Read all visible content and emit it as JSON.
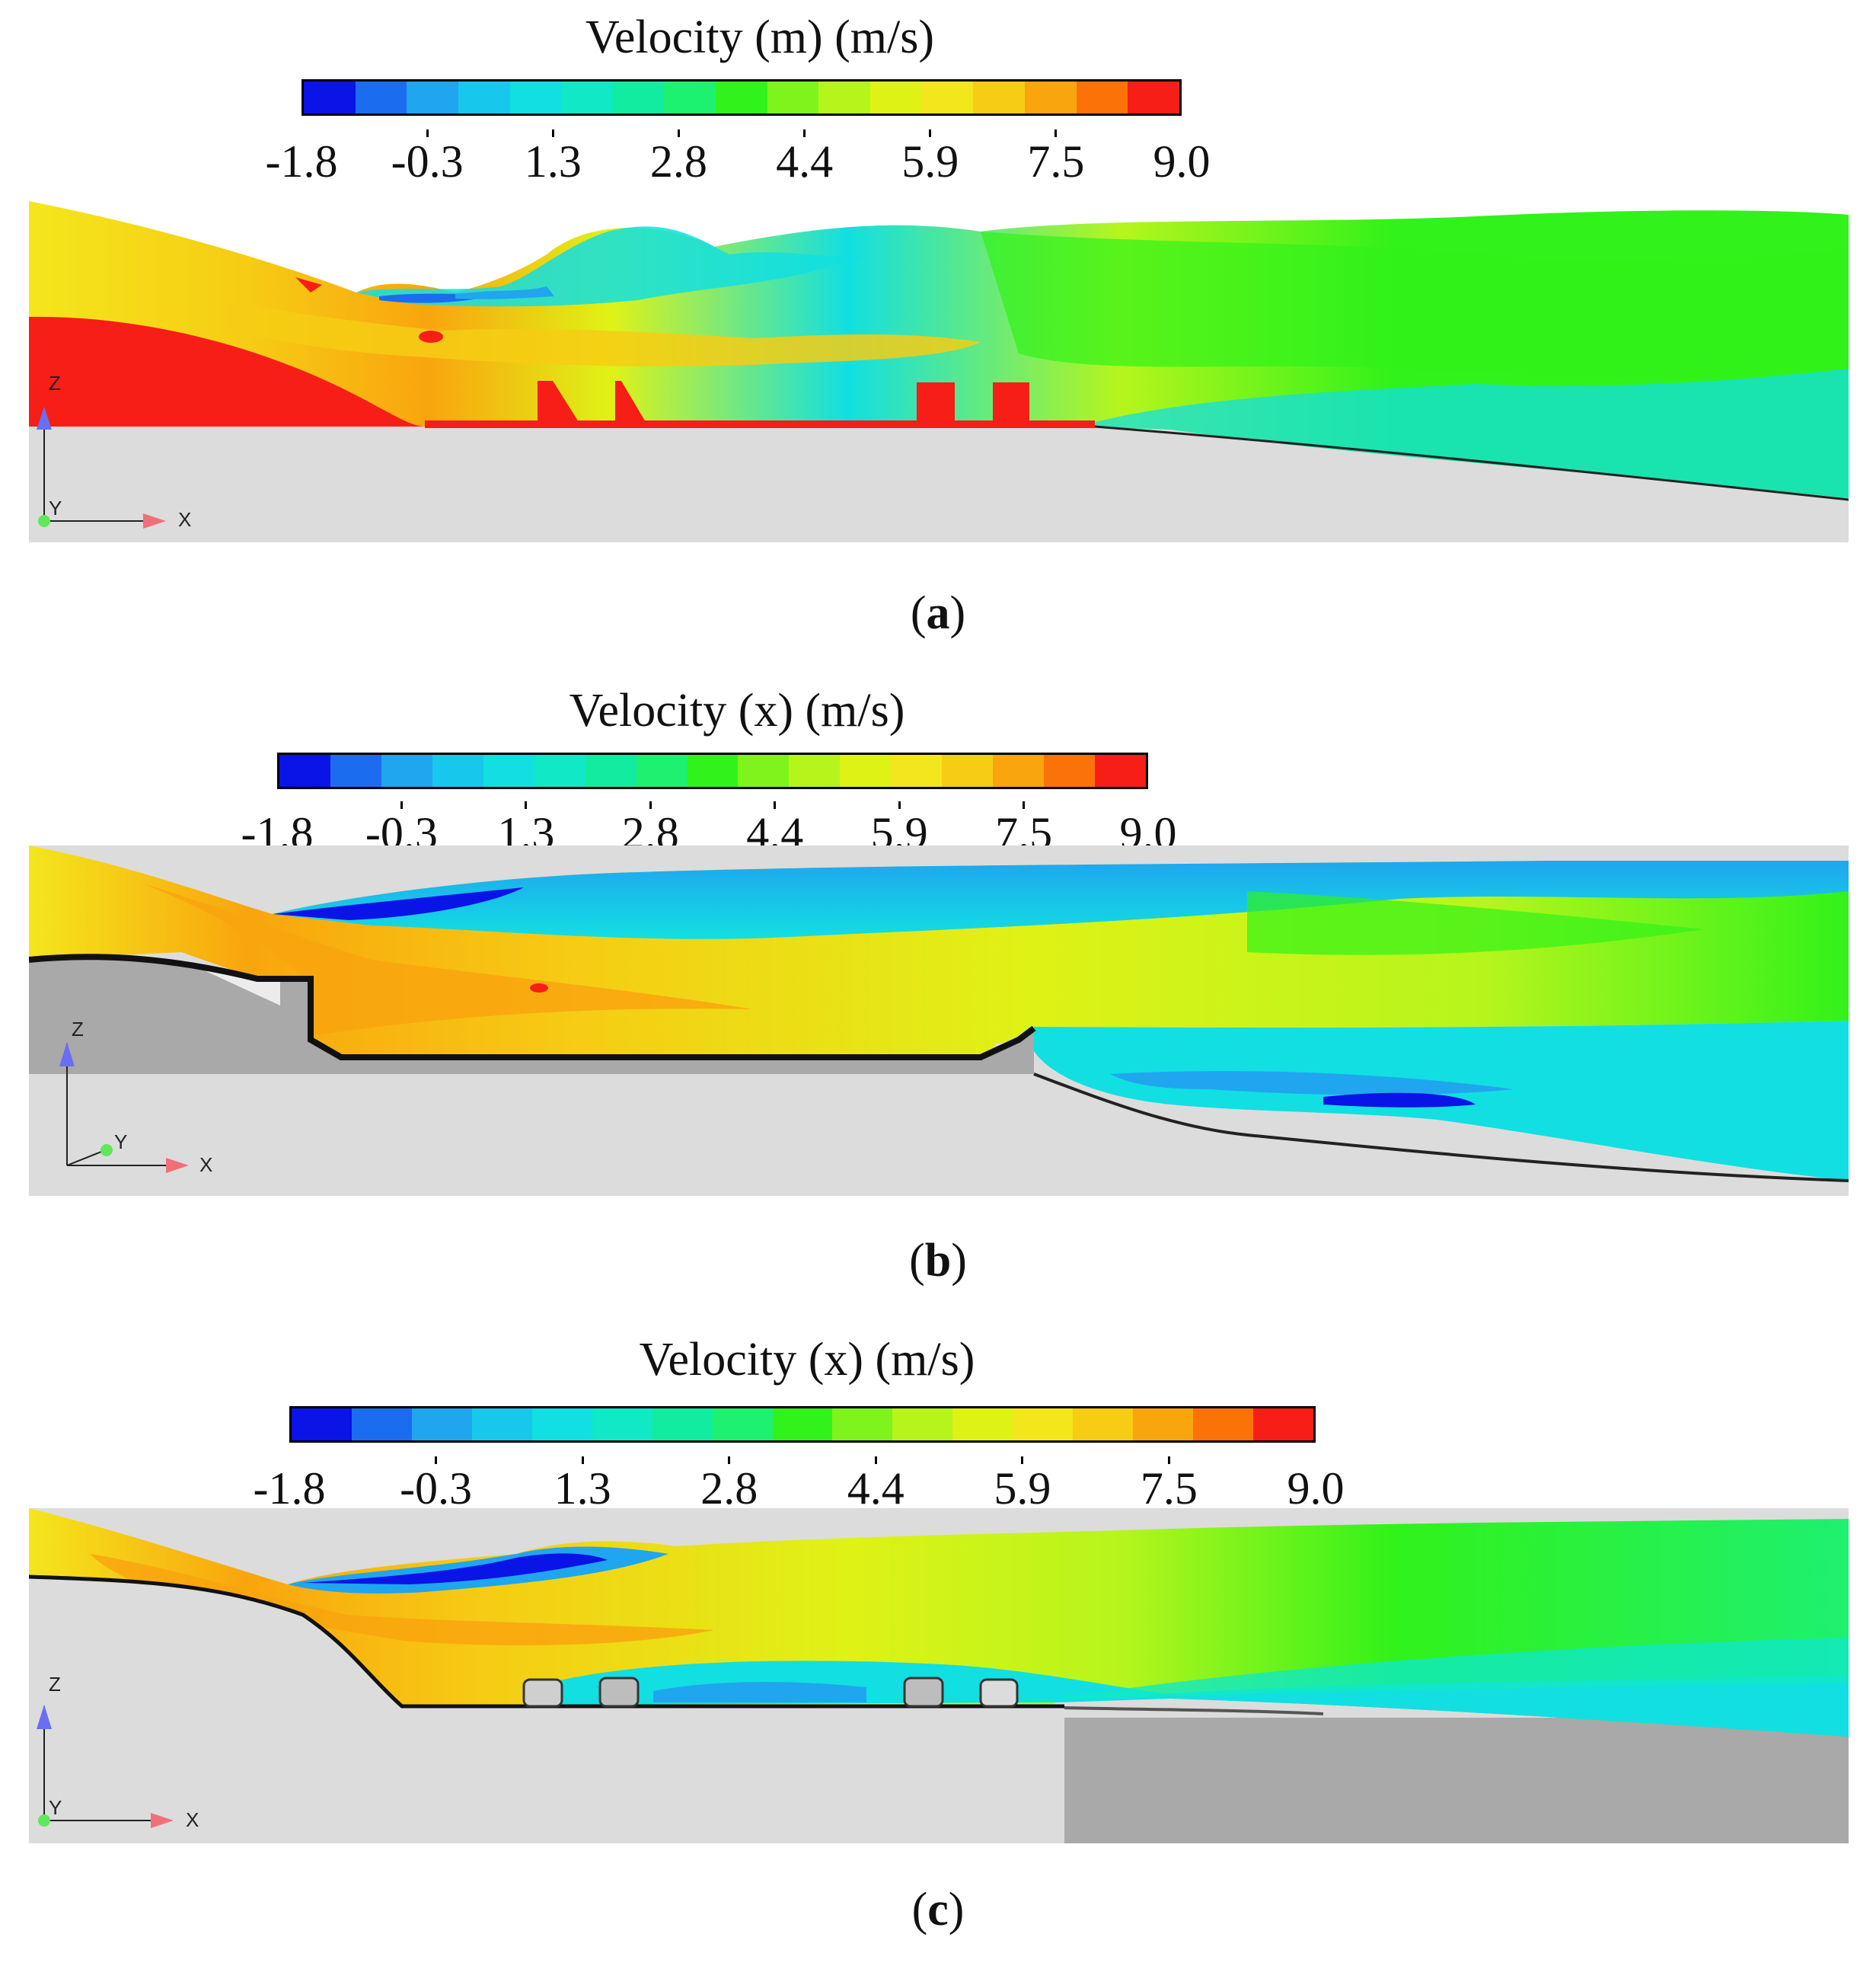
{
  "colorbar": {
    "ticks": [
      "-1.8",
      "-0.3",
      "1.3",
      "2.8",
      "4.4",
      "5.9",
      "7.5",
      "9.0"
    ],
    "colors": [
      "#0a14e6",
      "#1c6cf0",
      "#1fa6ef",
      "#18c8ec",
      "#12dfe1",
      "#10e8c6",
      "#12eca0",
      "#1ef070",
      "#31f21a",
      "#7ef41c",
      "#b6f51c",
      "#dff216",
      "#f4e61c",
      "#f6cc14",
      "#f9a50e",
      "#fb7308",
      "#f61e16"
    ]
  },
  "panels": [
    {
      "colorbar_title": "Velocity (m) (m/s)",
      "caption": "a",
      "axes": {
        "z": "Z",
        "y": "Y",
        "x": "X"
      }
    },
    {
      "colorbar_title": "Velocity (x) (m/s)",
      "caption": "b",
      "axes": {
        "z": "Z",
        "y": "Y",
        "x": "X"
      }
    },
    {
      "colorbar_title": "Velocity (x) (m/s)",
      "caption": "c",
      "axes": {
        "z": "Z",
        "y": "Y",
        "x": "X"
      }
    }
  ]
}
